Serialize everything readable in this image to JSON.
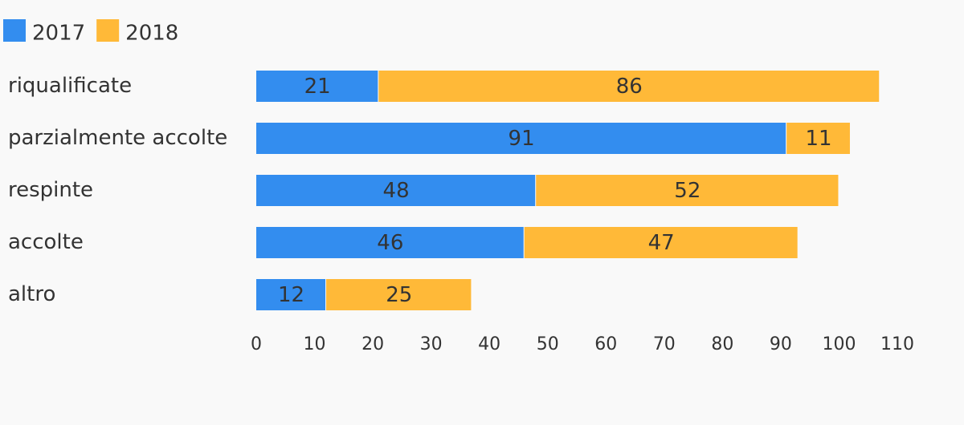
{
  "chart_data": {
    "type": "bar",
    "orientation": "horizontal",
    "stacked": true,
    "categories": [
      "riqualificate",
      "parzialmente accolte",
      "respinte",
      "accolte",
      "altro"
    ],
    "series": [
      {
        "name": "2017",
        "color": "#338DEF",
        "values": [
          21,
          91,
          48,
          46,
          12
        ]
      },
      {
        "name": "2018",
        "color": "#FFB938",
        "values": [
          86,
          11,
          52,
          47,
          25
        ]
      }
    ],
    "xlim": [
      0,
      110
    ],
    "xticks": [
      0,
      10,
      20,
      30,
      40,
      50,
      60,
      70,
      80,
      90,
      100,
      110
    ],
    "grid": false,
    "legend_position": "top-left",
    "data_labels": true
  }
}
